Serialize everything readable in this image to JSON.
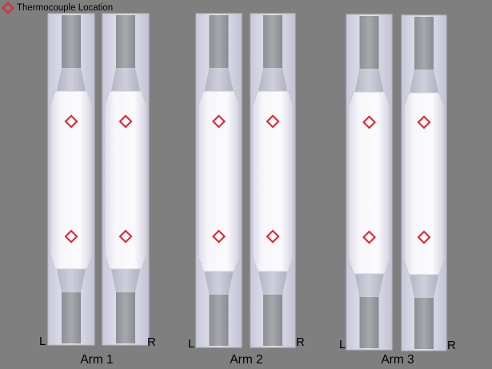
{
  "legend": {
    "label": "Thermocouple Location",
    "marker_color": "#e8202a"
  },
  "arms": [
    {
      "name": "Arm 1",
      "left_label": "L",
      "right_label": "R"
    },
    {
      "name": "Arm 2",
      "left_label": "L",
      "right_label": "R"
    },
    {
      "name": "Arm 3",
      "left_label": "L",
      "right_label": "R"
    }
  ],
  "colors": {
    "background": "#7f7f7f",
    "holder": "#d9d9e8",
    "specimen": "#f4f4f9",
    "grip": "#9a9aa2"
  }
}
